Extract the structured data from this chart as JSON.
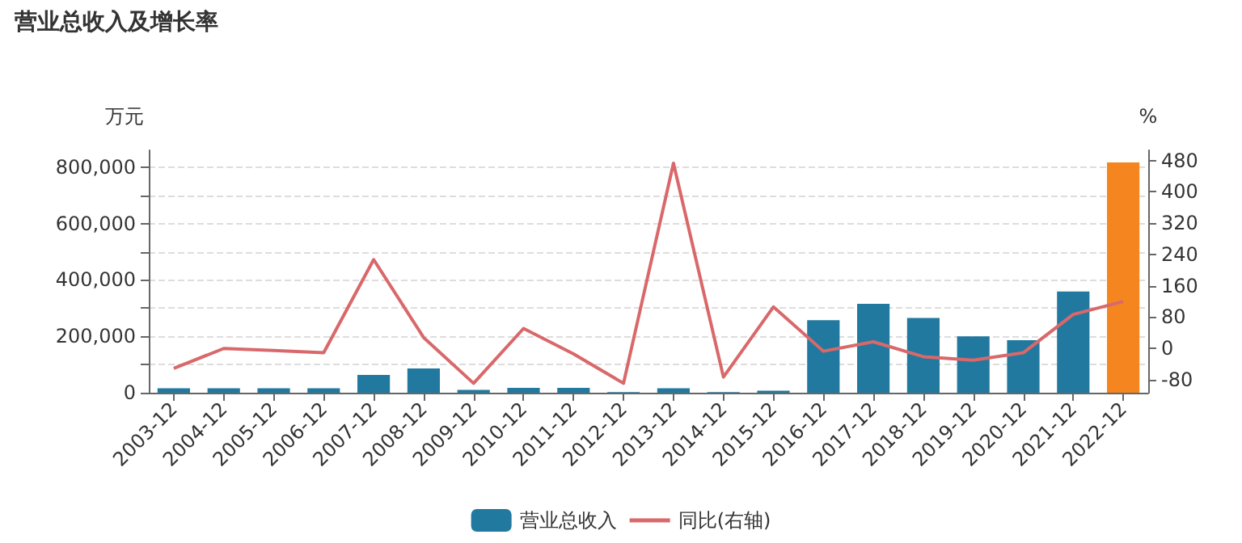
{
  "chart_data": {
    "type": "bar",
    "title": "营业总收入及增长率",
    "ylabel": "万元",
    "y2label": "%",
    "categories": [
      "2003-12",
      "2004-12",
      "2005-12",
      "2006-12",
      "2007-12",
      "2008-12",
      "2009-12",
      "2010-12",
      "2011-12",
      "2012-12",
      "2013-12",
      "2014-12",
      "2015-12",
      "2016-12",
      "2017-12",
      "2018-12",
      "2019-12",
      "2020-12",
      "2021-12",
      "2022-12"
    ],
    "series": [
      {
        "name": "营业总收入",
        "color": "#21799f",
        "colors": [
          "#21799f",
          "#21799f",
          "#21799f",
          "#21799f",
          "#21799f",
          "#21799f",
          "#21799f",
          "#21799f",
          "#21799f",
          "#21799f",
          "#21799f",
          "#21799f",
          "#21799f",
          "#21799f",
          "#21799f",
          "#21799f",
          "#21799f",
          "#21799f",
          "#21799f",
          "#f5861f"
        ],
        "values": [
          16000,
          16000,
          16000,
          16000,
          63000,
          86000,
          10000,
          17000,
          17000,
          2000,
          16000,
          2000,
          7000,
          257000,
          315000,
          265000,
          200000,
          186000,
          359000,
          817000
        ]
      },
      {
        "name": "同比(右轴)",
        "type": "line",
        "axis": "y2",
        "color": "#d9686a",
        "values": [
          -51,
          0,
          -5,
          -11,
          227,
          28,
          -89,
          51,
          -14,
          -89,
          473,
          -73,
          106,
          -7,
          17,
          -21,
          -30,
          -11,
          87,
          120
        ]
      }
    ],
    "ylim": [
      0,
      860000
    ],
    "yticks": [
      0,
      {
        "value": 100000,
        "label": null
      },
      {
        "value": 200000,
        "label": "200,000"
      },
      {
        "value": 300000,
        "label": null
      },
      {
        "value": 400000,
        "label": "400,000"
      },
      {
        "value": 500000,
        "label": null
      },
      {
        "value": 600000,
        "label": "600,000"
      },
      {
        "value": 700000,
        "label": null
      },
      {
        "value": 800000,
        "label": "800,000"
      }
    ],
    "y2lim": [
      -113,
      506
    ],
    "y2ticks": [
      -80,
      0,
      80,
      160,
      240,
      320,
      400,
      480
    ],
    "grid": "y",
    "legend": "bottom",
    "marker": "none",
    "line_style": "solid"
  }
}
